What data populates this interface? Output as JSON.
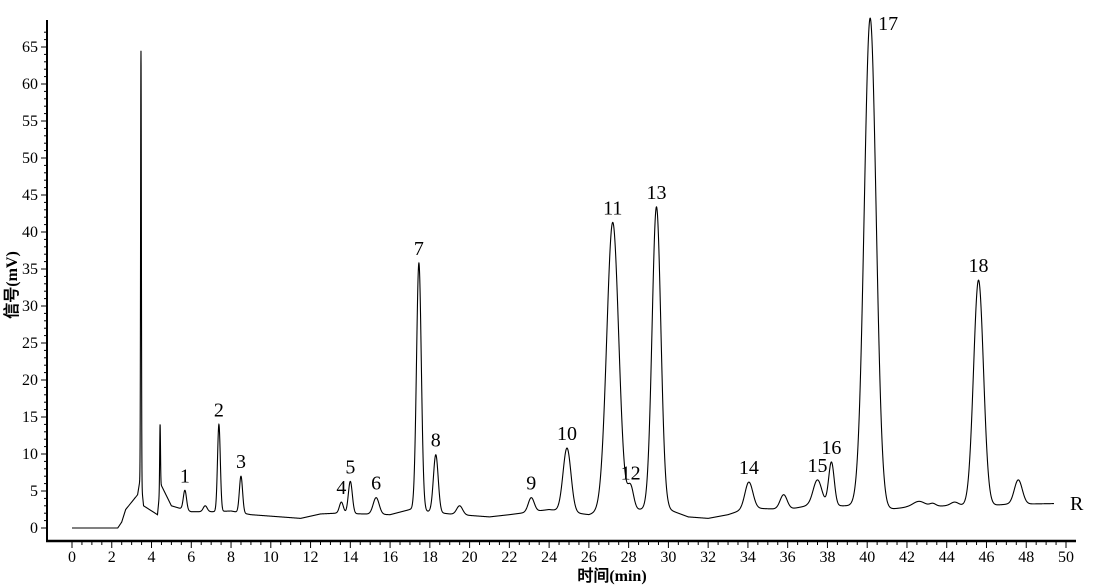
{
  "chart_data": {
    "type": "line",
    "title": "",
    "xlabel": "时间(min)",
    "ylabel": "信号(mV)",
    "xlim": [
      0,
      50
    ],
    "ylim": [
      0,
      65
    ],
    "x_ticks": [
      "0",
      "2",
      "4",
      "6",
      "8",
      "10",
      "12",
      "14",
      "16",
      "18",
      "20",
      "22",
      "24",
      "26",
      "28",
      "30",
      "32",
      "34",
      "36",
      "38",
      "40",
      "42",
      "44",
      "46",
      "48",
      "50"
    ],
    "y_ticks": [
      "0",
      "5",
      "10",
      "15",
      "20",
      "25",
      "30",
      "35",
      "40",
      "45",
      "50",
      "55",
      "60",
      "65"
    ],
    "grid": false,
    "legend": "none",
    "trace_end_label": "R",
    "line_color": "#000000",
    "baseline": [
      [
        0,
        0
      ],
      [
        2.3,
        0
      ],
      [
        2.5,
        0.8
      ],
      [
        2.7,
        2.5
      ],
      [
        3.3,
        4.5
      ],
      [
        3.45,
        7
      ],
      [
        3.6,
        3
      ],
      [
        4.3,
        1.8
      ],
      [
        4.45,
        6
      ],
      [
        5,
        3
      ],
      [
        6,
        2.2
      ],
      [
        7,
        2.2
      ],
      [
        8,
        2.3
      ],
      [
        9,
        1.8
      ],
      [
        10,
        1.6
      ],
      [
        11.5,
        1.3
      ],
      [
        12.5,
        1.9
      ],
      [
        13.3,
        2.0
      ],
      [
        16,
        1.8
      ],
      [
        17,
        2.5
      ],
      [
        19,
        1.9
      ],
      [
        20,
        1.7
      ],
      [
        21,
        1.5
      ],
      [
        22,
        1.8
      ],
      [
        24,
        2.5
      ],
      [
        26,
        1.8
      ],
      [
        27,
        2.5
      ],
      [
        30,
        2.5
      ],
      [
        31,
        1.5
      ],
      [
        32,
        1.3
      ],
      [
        33,
        1.8
      ],
      [
        34,
        2.7
      ],
      [
        36,
        2.5
      ],
      [
        37,
        3
      ],
      [
        39,
        3
      ],
      [
        40,
        3
      ],
      [
        41,
        2.5
      ],
      [
        42,
        2.8
      ],
      [
        44,
        3
      ],
      [
        46,
        3
      ],
      [
        47,
        3.2
      ],
      [
        49.4,
        3.3
      ]
    ],
    "peaks": [
      {
        "label": "",
        "rt": 3.47,
        "height": 64.5,
        "width": 0.02
      },
      {
        "label": "",
        "rt": 4.43,
        "height": 14,
        "width": 0.02
      },
      {
        "label": "1",
        "rt": 5.68,
        "height": 5.1,
        "width": 0.08
      },
      {
        "label": "",
        "rt": 6.7,
        "height": 3,
        "width": 0.1
      },
      {
        "label": "2",
        "rt": 7.39,
        "height": 14,
        "width": 0.07
      },
      {
        "label": "3",
        "rt": 8.5,
        "height": 7,
        "width": 0.08
      },
      {
        "label": "4",
        "rt": 13.55,
        "height": 3.5,
        "width": 0.1
      },
      {
        "label": "5",
        "rt": 14.0,
        "height": 6.3,
        "width": 0.1
      },
      {
        "label": "6",
        "rt": 15.3,
        "height": 4.1,
        "width": 0.15
      },
      {
        "label": "7",
        "rt": 17.45,
        "height": 35.8,
        "width": 0.12
      },
      {
        "label": "8",
        "rt": 18.3,
        "height": 9.9,
        "width": 0.12
      },
      {
        "label": "",
        "rt": 19.5,
        "height": 3.0,
        "width": 0.15
      },
      {
        "label": "9",
        "rt": 23.1,
        "height": 4.1,
        "width": 0.15
      },
      {
        "label": "10",
        "rt": 24.9,
        "height": 10.8,
        "width": 0.2
      },
      {
        "label": "11",
        "rt": 27.2,
        "height": 41.3,
        "width": 0.3
      },
      {
        "label": "12",
        "rt": 28.1,
        "height": 5.5,
        "width": 0.15
      },
      {
        "label": "13",
        "rt": 29.4,
        "height": 43.4,
        "width": 0.22
      },
      {
        "label": "14",
        "rt": 34.05,
        "height": 6.2,
        "width": 0.2
      },
      {
        "label": "",
        "rt": 35.8,
        "height": 4.5,
        "width": 0.18
      },
      {
        "label": "15",
        "rt": 37.5,
        "height": 6.5,
        "width": 0.22
      },
      {
        "label": "16",
        "rt": 38.2,
        "height": 8.9,
        "width": 0.14
      },
      {
        "label": "17",
        "rt": 40.15,
        "height": 68.9,
        "width": 0.3
      },
      {
        "label": "",
        "rt": 42.6,
        "height": 3.6,
        "width": 0.3
      },
      {
        "label": "",
        "rt": 43.3,
        "height": 3.3,
        "width": 0.15
      },
      {
        "label": "",
        "rt": 44.4,
        "height": 3.5,
        "width": 0.2
      },
      {
        "label": "18",
        "rt": 45.6,
        "height": 33.5,
        "width": 0.25
      },
      {
        "label": "",
        "rt": 47.6,
        "height": 6.5,
        "width": 0.2
      }
    ]
  }
}
